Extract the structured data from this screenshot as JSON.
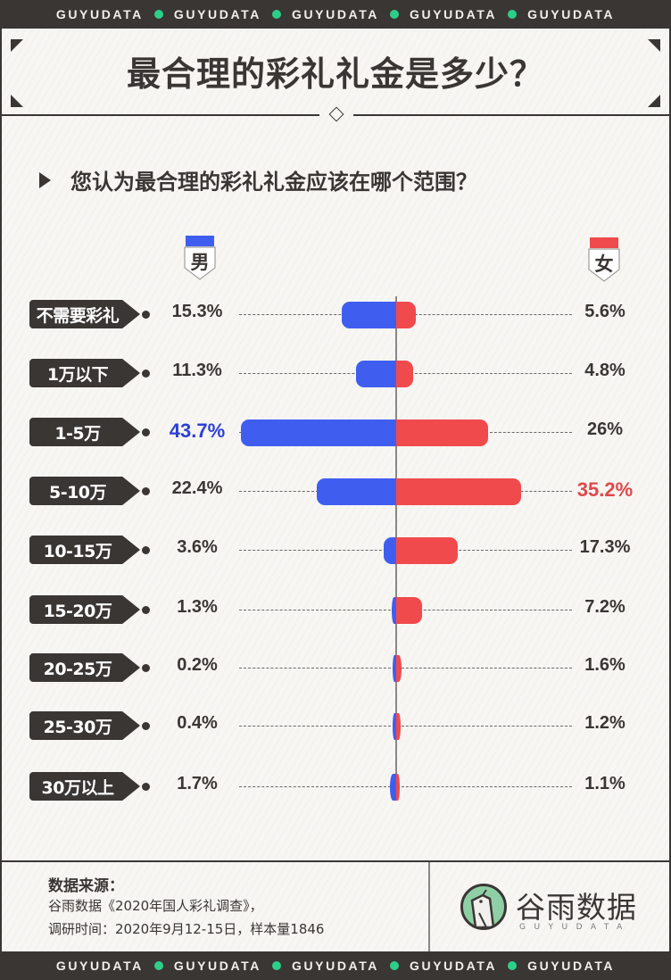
{
  "ticker": {
    "text": "GUYUDATA",
    "repeat": 5,
    "dot_color": "#2ccf8a"
  },
  "header": {
    "title": "最合理的彩礼礼金是多少？"
  },
  "question": {
    "text": "您认为最合理的彩礼礼金应该在哪个范围？"
  },
  "legend": {
    "male": {
      "label": "男",
      "color": "#3f5ef0"
    },
    "female": {
      "label": "女",
      "color": "#f04a4c"
    }
  },
  "chart_data": {
    "type": "bar",
    "orientation": "horizontal-diverging",
    "title": "您认为最合理的彩礼礼金应该在哪个范围？",
    "categories": [
      "不需要彩礼",
      "1万以下",
      "1-5万",
      "5-10万",
      "10-15万",
      "15-20万",
      "20-25万",
      "25-30万",
      "30万以上"
    ],
    "series": [
      {
        "name": "男",
        "color": "#3f5ef0",
        "values": [
          15.3,
          11.3,
          43.7,
          22.4,
          3.6,
          1.3,
          0.2,
          0.4,
          1.7
        ],
        "labels": [
          "15.3%",
          "11.3%",
          "43.7%",
          "22.4%",
          "3.6%",
          "1.3%",
          "0.2%",
          "0.4%",
          "1.7%"
        ],
        "highlight_index": 2,
        "highlight_color": "#2c3fd4"
      },
      {
        "name": "女",
        "color": "#f04a4c",
        "values": [
          5.6,
          4.8,
          26,
          35.2,
          17.3,
          7.2,
          1.6,
          1.2,
          1.1
        ],
        "labels": [
          "5.6%",
          "4.8%",
          "26%",
          "35.2%",
          "17.3%",
          "7.2%",
          "1.6%",
          "1.2%",
          "1.1%"
        ],
        "highlight_index": 3,
        "highlight_color": "#e0484a"
      }
    ],
    "xlabel": "",
    "ylabel": "",
    "grid": false,
    "legend_position": "top"
  },
  "footer": {
    "source_title": "数据来源：",
    "source_line1": "谷雨数据《2020年国人彩礼调查》，",
    "source_line2": "调研时间：2020年9月12-15日，样本量1846",
    "logo_name": "谷雨数据",
    "logo_sub": "GUYUDATA"
  }
}
